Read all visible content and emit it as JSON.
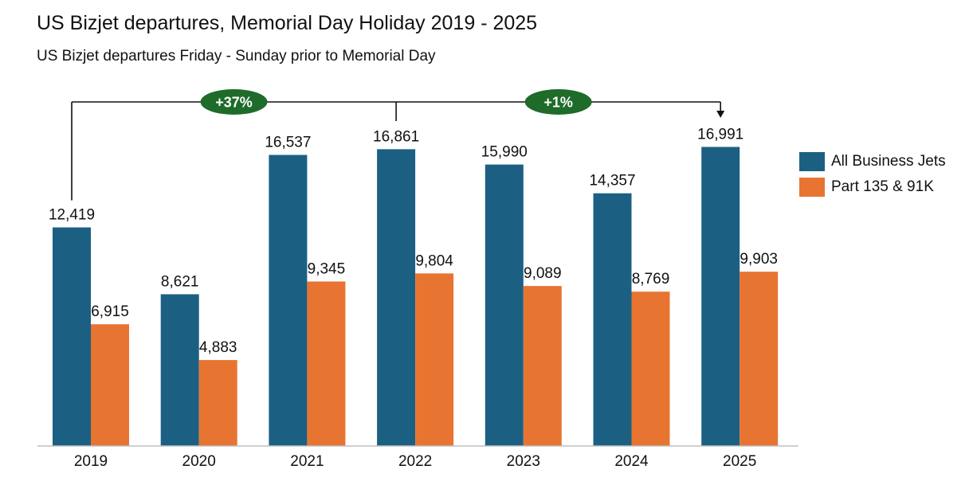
{
  "chart_data": {
    "type": "bar",
    "title": "US Bizjet departures, Memorial Day Holiday 2019 - 2025",
    "subtitle": "US Bizjet departures Friday - Sunday prior to Memorial Day",
    "categories": [
      "2019",
      "2020",
      "2021",
      "2022",
      "2023",
      "2024",
      "2025"
    ],
    "series": [
      {
        "name": "All Business Jets",
        "color": "#1B6083",
        "values": [
          12419,
          8621,
          16537,
          16861,
          15990,
          14357,
          16991
        ],
        "labels": [
          "12,419",
          "8,621",
          "16,537",
          "16,861",
          "15,990",
          "14,357",
          "16,991"
        ]
      },
      {
        "name": "Part 135 & 91K",
        "color": "#E87432",
        "values": [
          6915,
          4883,
          9345,
          9804,
          9089,
          8769,
          9903
        ],
        "labels": [
          "6,915",
          "4,883",
          "9,345",
          "9,804",
          "9,089",
          "8,769",
          "9,903"
        ]
      }
    ],
    "ylim": [
      0,
      20000
    ],
    "grid": false,
    "legend": "right",
    "annotations": [
      {
        "text": "+37%",
        "from": "2019",
        "to": "2022",
        "color": "#1E6B2A"
      },
      {
        "text": "+1%",
        "from": "2022",
        "to": "2025",
        "color": "#1E6B2A"
      }
    ]
  }
}
